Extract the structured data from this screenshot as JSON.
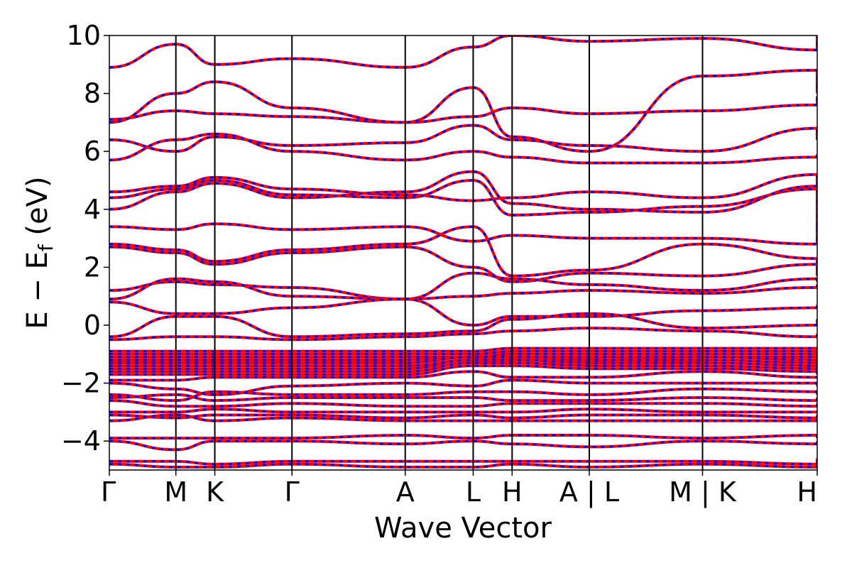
{
  "chart_data": {
    "type": "line",
    "title": "",
    "xlabel": "Wave Vector",
    "ylabel": "E − E",
    "ylabel_subscript": "f",
    "ylabel_unit": " (eV)",
    "ylim": [
      -5,
      10
    ],
    "yticks": [
      -4,
      -2,
      0,
      2,
      4,
      6,
      8,
      10
    ],
    "ytick_labels": [
      "−4",
      "−2",
      "0",
      "2",
      "4",
      "6",
      "8",
      "10"
    ],
    "xlim": [
      0,
      1
    ],
    "kpoints": [
      {
        "label": "Γ",
        "x": 0.0
      },
      {
        "label": "M",
        "x": 0.094
      },
      {
        "label": "K",
        "x": 0.149
      },
      {
        "label": "Γ",
        "x": 0.258
      },
      {
        "label": "A",
        "x": 0.418
      },
      {
        "label": "L",
        "x": 0.514
      },
      {
        "label": "H",
        "x": 0.569
      },
      {
        "label": "A | L",
        "x": 0.678
      },
      {
        "label": "M | K",
        "x": 0.838
      },
      {
        "label": "H",
        "x": 1.0
      }
    ],
    "grid": false,
    "legend": "none",
    "series_colors": {
      "line_a": "#ff0000",
      "line_b": "#0000ff"
    },
    "series_style": "overlapping solid red and dashed blue bands",
    "bands": [
      [
        8.9,
        9.7,
        9.0,
        9.2,
        8.9,
        9.6,
        10.0,
        9.8,
        9.9,
        9.5,
        10.0
      ],
      [
        7.1,
        7.4,
        7.3,
        7.2,
        7.0,
        7.2,
        7.5,
        7.3,
        7.4,
        7.6,
        7.9
      ],
      [
        7.0,
        8.0,
        8.4,
        7.5,
        7.0,
        8.2,
        6.5,
        6.0,
        8.6,
        8.8,
        8.0
      ],
      [
        6.4,
        6.0,
        6.5,
        6.2,
        6.3,
        6.9,
        6.4,
        6.2,
        6.0,
        6.8,
        6.4
      ],
      [
        5.7,
        6.4,
        6.6,
        6.0,
        5.7,
        6.0,
        5.8,
        5.6,
        5.6,
        5.8,
        5.9
      ],
      [
        4.6,
        4.8,
        5.1,
        4.7,
        4.5,
        4.3,
        4.4,
        4.6,
        4.4,
        5.2,
        4.8
      ],
      [
        4.4,
        4.7,
        5.0,
        4.5,
        4.4,
        5.0,
        3.8,
        3.9,
        4.1,
        4.7,
        3.2
      ],
      [
        4.0,
        4.6,
        4.9,
        4.4,
        4.6,
        5.3,
        4.2,
        4.0,
        3.9,
        4.8,
        4.0
      ],
      [
        3.4,
        3.3,
        3.5,
        3.3,
        3.4,
        2.9,
        3.1,
        3.0,
        3.0,
        2.8,
        3.4
      ],
      [
        2.8,
        2.6,
        2.2,
        2.6,
        2.8,
        3.4,
        1.7,
        1.9,
        2.8,
        2.3,
        1.9
      ],
      [
        2.7,
        2.5,
        2.1,
        2.5,
        2.7,
        2.0,
        1.5,
        1.8,
        1.7,
        2.1,
        1.7
      ],
      [
        1.2,
        1.5,
        1.4,
        1.3,
        0.9,
        1.8,
        1.6,
        1.4,
        1.2,
        1.6,
        1.5
      ],
      [
        0.9,
        1.6,
        1.5,
        1.0,
        0.9,
        1.0,
        1.1,
        1.2,
        1.1,
        1.3,
        1.4
      ],
      [
        0.8,
        0.4,
        0.4,
        0.6,
        0.9,
        0.0,
        0.3,
        0.3,
        0.5,
        0.6,
        0.7
      ],
      [
        -0.4,
        0.3,
        0.3,
        -0.4,
        -0.3,
        -0.2,
        0.2,
        0.4,
        -0.1,
        0.0,
        0.2
      ],
      [
        -0.5,
        -0.4,
        -0.4,
        -0.5,
        -0.4,
        -0.3,
        -0.2,
        -0.1,
        -0.2,
        -0.4,
        -0.3
      ],
      [
        -0.9,
        -0.9,
        -0.9,
        -0.9,
        -0.9,
        -0.9,
        -0.8,
        -0.8,
        -0.8,
        -0.8,
        -0.9
      ],
      [
        -1.0,
        -1.0,
        -1.0,
        -1.0,
        -1.0,
        -1.0,
        -0.9,
        -0.9,
        -0.9,
        -0.9,
        -1.0
      ],
      [
        -1.1,
        -1.1,
        -1.1,
        -1.1,
        -1.1,
        -1.1,
        -1.0,
        -1.0,
        -1.0,
        -1.0,
        -1.1
      ],
      [
        -1.2,
        -1.2,
        -1.2,
        -1.2,
        -1.2,
        -1.1,
        -1.1,
        -1.1,
        -1.1,
        -1.1,
        -1.2
      ],
      [
        -1.3,
        -1.3,
        -1.3,
        -1.3,
        -1.3,
        -1.1,
        -1.1,
        -1.1,
        -1.1,
        -1.2,
        -1.3
      ],
      [
        -1.4,
        -1.4,
        -1.4,
        -1.4,
        -1.4,
        -1.2,
        -1.2,
        -1.2,
        -1.2,
        -1.3,
        -1.4
      ],
      [
        -1.5,
        -1.5,
        -1.5,
        -1.5,
        -1.5,
        -1.2,
        -1.2,
        -1.3,
        -1.3,
        -1.4,
        -1.5
      ],
      [
        -1.6,
        -1.6,
        -1.6,
        -1.6,
        -1.6,
        -1.3,
        -1.3,
        -1.4,
        -1.4,
        -1.5,
        -1.6
      ],
      [
        -1.7,
        -1.7,
        -1.7,
        -1.7,
        -1.7,
        -1.4,
        -1.4,
        -1.5,
        -1.5,
        -1.6,
        -1.7
      ],
      [
        -1.9,
        -1.9,
        -1.8,
        -1.8,
        -1.8,
        -1.6,
        -1.8,
        -1.8,
        -1.6,
        -1.8,
        -1.8
      ],
      [
        -2.0,
        -2.2,
        -2.4,
        -2.1,
        -2.0,
        -2.1,
        -1.9,
        -2.0,
        -2.0,
        -2.0,
        -2.1
      ],
      [
        -2.4,
        -2.6,
        -2.3,
        -2.4,
        -2.4,
        -2.3,
        -2.3,
        -2.4,
        -2.2,
        -2.3,
        -2.4
      ],
      [
        -2.5,
        -2.4,
        -2.6,
        -2.5,
        -2.5,
        -2.5,
        -2.6,
        -2.6,
        -2.5,
        -2.6,
        -2.5
      ],
      [
        -2.6,
        -2.8,
        -2.8,
        -2.7,
        -2.8,
        -2.8,
        -2.7,
        -2.7,
        -2.7,
        -2.8,
        -2.7
      ],
      [
        -3.0,
        -3.0,
        -2.9,
        -3.0,
        -3.0,
        -3.0,
        -3.0,
        -2.9,
        -3.0,
        -3.0,
        -3.0
      ],
      [
        -3.1,
        -3.2,
        -3.1,
        -3.1,
        -3.2,
        -3.1,
        -3.2,
        -3.1,
        -3.1,
        -3.2,
        -3.1
      ],
      [
        -3.3,
        -3.1,
        -3.3,
        -3.2,
        -3.3,
        -3.3,
        -3.3,
        -3.3,
        -3.3,
        -3.3,
        -3.2
      ],
      [
        -3.9,
        -3.9,
        -3.9,
        -3.9,
        -3.8,
        -3.9,
        -3.8,
        -3.8,
        -3.9,
        -3.8,
        -3.9
      ],
      [
        -4.0,
        -4.3,
        -4.0,
        -4.0,
        -4.1,
        -4.0,
        -4.1,
        -4.2,
        -4.0,
        -4.1,
        -4.0
      ],
      [
        -4.7,
        -4.7,
        -4.8,
        -4.7,
        -4.7,
        -4.7,
        -4.7,
        -4.7,
        -4.7,
        -4.8,
        -4.6
      ],
      [
        -4.8,
        -4.9,
        -4.9,
        -4.8,
        -4.9,
        -4.9,
        -4.8,
        -4.9,
        -4.8,
        -4.9,
        -4.8
      ]
    ]
  }
}
